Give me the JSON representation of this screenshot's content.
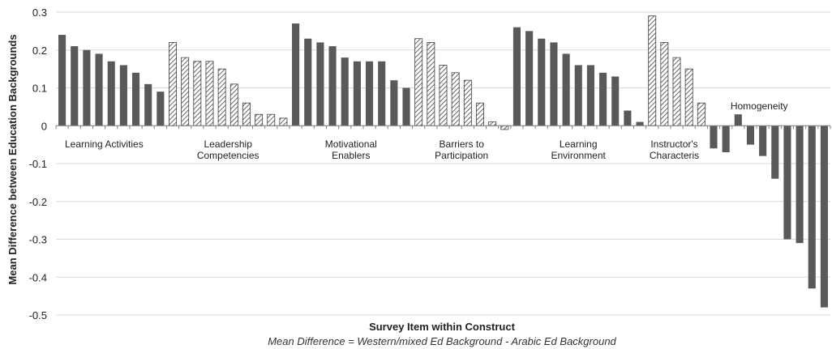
{
  "chart_data": {
    "type": "bar",
    "title": "",
    "xlabel": "Survey Item within Construct",
    "ylabel": "Mean Difference between Education Backgrounds",
    "note": "Mean Difference = Western/mixed Ed Background - Arabic Ed Background",
    "ylim": [
      -0.5,
      0.3
    ],
    "yticks": [
      "0.3",
      "0.2",
      "0.1",
      "0",
      "-0.1",
      "-0.2",
      "-0.3",
      "-0.4",
      "-0.5"
    ],
    "grid": true,
    "legend": "none",
    "colors": {
      "solid": "#595959",
      "hatch": "#404040",
      "hatch_bg": "#ffffff",
      "grid": "#d9d9d9",
      "axis": "#7f7f7f"
    },
    "groups": [
      {
        "name": "Learning Activities",
        "label_lines": [
          "Learning Activities"
        ],
        "style": "solid",
        "values": [
          0.24,
          0.21,
          0.2,
          0.19,
          0.17,
          0.16,
          0.14,
          0.11,
          0.09
        ]
      },
      {
        "name": "Leadership Competencies",
        "label_lines": [
          "Leadership",
          "Competencies"
        ],
        "style": "hatched",
        "values": [
          0.22,
          0.18,
          0.17,
          0.17,
          0.15,
          0.11,
          0.06,
          0.03,
          0.03,
          0.02
        ]
      },
      {
        "name": "Motivational Enablers",
        "label_lines": [
          "Motivational",
          "Enablers"
        ],
        "style": "solid",
        "values": [
          0.27,
          0.23,
          0.22,
          0.21,
          0.18,
          0.17,
          0.17,
          0.17,
          0.12,
          0.1
        ]
      },
      {
        "name": "Barriers to Participation",
        "label_lines": [
          "Barriers to",
          "Participation"
        ],
        "style": "hatched",
        "values": [
          0.23,
          0.22,
          0.16,
          0.14,
          0.12,
          0.06,
          0.01,
          -0.01
        ]
      },
      {
        "name": "Learning Environment",
        "label_lines": [
          "Learning",
          "Environment"
        ],
        "style": "solid",
        "values": [
          0.26,
          0.25,
          0.23,
          0.22,
          0.19,
          0.16,
          0.16,
          0.14,
          0.13,
          0.04,
          0.01
        ]
      },
      {
        "name": "Instructor's Characteris",
        "label_lines": [
          "Instructor's",
          "Characteris"
        ],
        "style": "hatched",
        "values": [
          0.29,
          0.22,
          0.18,
          0.15,
          0.06
        ]
      },
      {
        "name": "Homogeneity",
        "label_lines": [
          "Homogeneity"
        ],
        "style": "solid",
        "values": [
          -0.06,
          -0.07,
          0.03,
          -0.05,
          -0.08,
          -0.14,
          -0.3,
          -0.31,
          -0.43,
          -0.48
        ]
      }
    ]
  }
}
